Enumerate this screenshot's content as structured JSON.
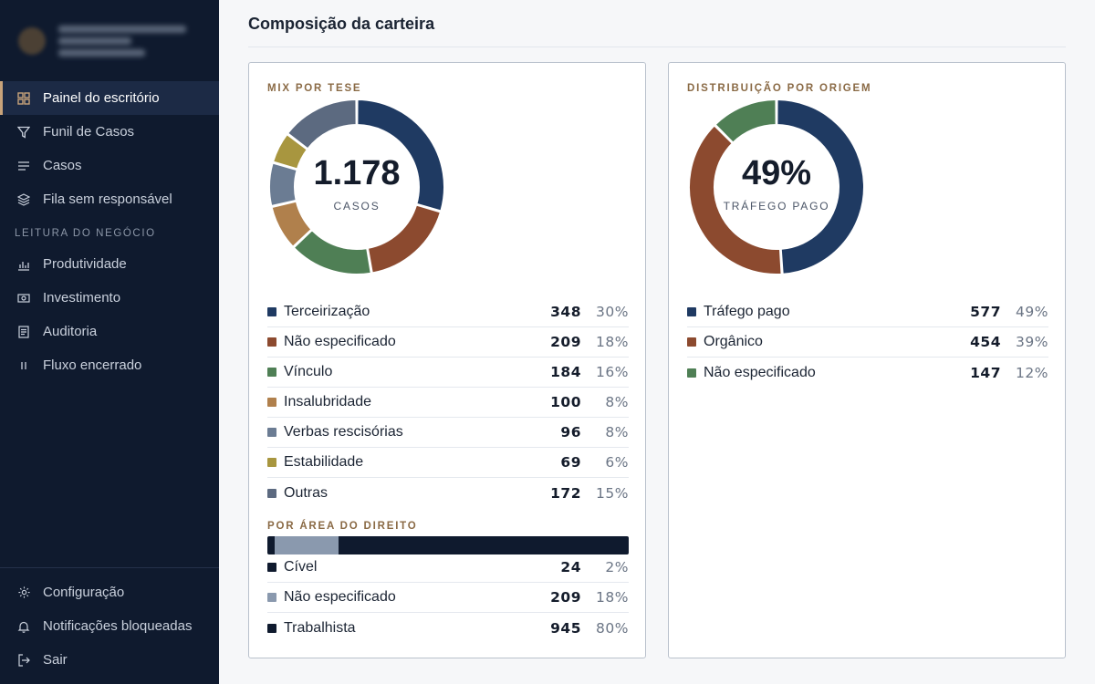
{
  "sidebar": {
    "items": [
      {
        "label": "Painel do escritório",
        "icon": "grid-icon",
        "active": true
      },
      {
        "label": "Funil de Casos",
        "icon": "filter-icon"
      },
      {
        "label": "Casos",
        "icon": "list-icon"
      },
      {
        "label": "Fila sem responsável",
        "icon": "layers-icon"
      }
    ],
    "section_label": "LEITURA DO NEGÓCIO",
    "section_items": [
      {
        "label": "Produtividade",
        "icon": "bar-chart-icon"
      },
      {
        "label": "Investimento",
        "icon": "banknote-icon"
      },
      {
        "label": "Auditoria",
        "icon": "document-icon"
      },
      {
        "label": "Fluxo encerrado",
        "icon": "pause-icon"
      }
    ],
    "footer_items": [
      {
        "label": "Configuração",
        "icon": "gear-icon"
      },
      {
        "label": "Notificações bloqueadas",
        "icon": "bell-icon"
      },
      {
        "label": "Sair",
        "icon": "logout-icon"
      }
    ]
  },
  "main": {
    "title": "Composição da carteira"
  },
  "colors": {
    "navy": "#1f3a62",
    "rust": "#8c4a2f",
    "green": "#4f7f55",
    "tan": "#b0804c",
    "slate": "#6b7c93",
    "olive": "#a8963f",
    "gray": "#5c6a80",
    "black": "#0f1a2e",
    "light_slate": "#8a99ae"
  },
  "mix_por_tese": {
    "label": "MIX POR TESE",
    "center_value": "1.178",
    "center_sub": "CASOS",
    "items": [
      {
        "name": "Terceirização",
        "count": "348",
        "pct": "30%",
        "value": 348,
        "color": "#1f3a62"
      },
      {
        "name": "Não especificado",
        "count": "209",
        "pct": "18%",
        "value": 209,
        "color": "#8c4a2f"
      },
      {
        "name": "Vínculo",
        "count": "184",
        "pct": "16%",
        "value": 184,
        "color": "#4f7f55"
      },
      {
        "name": "Insalubridade",
        "count": "100",
        "pct": "8%",
        "value": 100,
        "color": "#b0804c"
      },
      {
        "name": "Verbas rescisórias",
        "count": "96",
        "pct": "8%",
        "value": 96,
        "color": "#6b7c93"
      },
      {
        "name": "Estabilidade",
        "count": "69",
        "pct": "6%",
        "value": 69,
        "color": "#a8963f"
      },
      {
        "name": "Outras",
        "count": "172",
        "pct": "15%",
        "value": 172,
        "color": "#5c6a80"
      }
    ]
  },
  "por_area": {
    "label": "POR ÁREA DO DIREITO",
    "items": [
      {
        "name": "Cível",
        "count": "24",
        "pct": "2%",
        "value": 24,
        "color": "#0f1a2e"
      },
      {
        "name": "Não especificado",
        "count": "209",
        "pct": "18%",
        "value": 209,
        "color": "#8a99ae"
      },
      {
        "name": "Trabalhista",
        "count": "945",
        "pct": "80%",
        "value": 945,
        "color": "#0f1a2e"
      }
    ]
  },
  "distribuicao_origem": {
    "label": "DISTRIBUIÇÃO POR ORIGEM",
    "center_value": "49%",
    "center_sub": "TRÁFEGO PAGO",
    "items": [
      {
        "name": "Tráfego pago",
        "count": "577",
        "pct": "49%",
        "value": 577,
        "color": "#1f3a62"
      },
      {
        "name": "Orgânico",
        "count": "454",
        "pct": "39%",
        "value": 454,
        "color": "#8c4a2f"
      },
      {
        "name": "Não especificado",
        "count": "147",
        "pct": "12%",
        "value": 147,
        "color": "#4f7f55"
      }
    ]
  }
}
